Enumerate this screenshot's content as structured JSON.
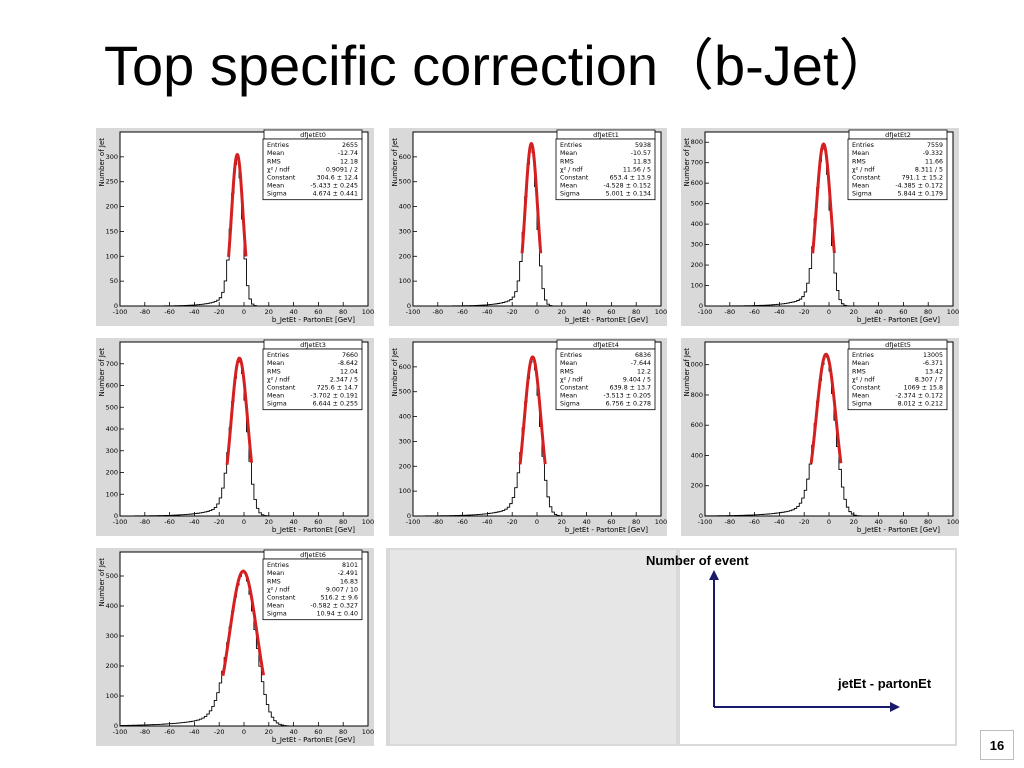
{
  "slide": {
    "title": "Top specific correction（b-Jet）",
    "page_number": "16"
  },
  "annotation": {
    "y_label": "Number of event",
    "x_label": "jetEt - partonEt"
  },
  "colors": {
    "fit": "#d42020",
    "histogram": "#000000",
    "panel_background": "#d9d9d9"
  },
  "chart_data": [
    {
      "type": "histogram",
      "title": "dfJetEt0",
      "xlabel": "b_JetEt - PartonEt [GeV]",
      "ylabel": "Number of Jet",
      "xlim": [
        -100,
        100
      ],
      "xticks": [
        -100,
        -80,
        -60,
        -40,
        -20,
        0,
        20,
        40,
        60,
        80,
        100
      ],
      "ylim": [
        0,
        350
      ],
      "yticks": [
        0,
        50,
        100,
        150,
        200,
        250,
        300
      ],
      "ytick_labels": [
        "0",
        "50",
        "100",
        "150",
        "200",
        "250",
        "300"
      ],
      "peak": 304.6,
      "fit_mean": -5.433,
      "fit_sigma": 4.674,
      "stats": [
        [
          "Entries",
          "2655"
        ],
        [
          "Mean",
          "-12.74"
        ],
        [
          "RMS",
          "12.18"
        ],
        [
          "χ² / ndf",
          "0.9091 / 2"
        ],
        [
          "Constant",
          "304.6 ± 12.4"
        ],
        [
          "Mean",
          "-5.433 ± 0.245"
        ],
        [
          "Sigma",
          "4.674 ± 0.441"
        ]
      ]
    },
    {
      "type": "histogram",
      "title": "dfJetEt1",
      "xlabel": "b_JetEt - PartonEt [GeV]",
      "ylabel": "Number of Jet",
      "xlim": [
        -100,
        100
      ],
      "xticks": [
        -100,
        -80,
        -60,
        -40,
        -20,
        0,
        20,
        40,
        60,
        80,
        100
      ],
      "ylim": [
        0,
        700
      ],
      "yticks": [
        0,
        100,
        200,
        300,
        400,
        500,
        600
      ],
      "ytick_labels": [
        "0",
        "100",
        "200",
        "300",
        "400",
        "500",
        "600"
      ],
      "peak": 653.4,
      "fit_mean": -4.528,
      "fit_sigma": 5.001,
      "stats": [
        [
          "Entries",
          "5938"
        ],
        [
          "Mean",
          "-10.57"
        ],
        [
          "RMS",
          "11.83"
        ],
        [
          "χ² / ndf",
          "11.56 / 5"
        ],
        [
          "Constant",
          "653.4 ± 13.9"
        ],
        [
          "Mean",
          "-4.528 ± 0.152"
        ],
        [
          "Sigma",
          "5.001 ± 0.134"
        ]
      ]
    },
    {
      "type": "histogram",
      "title": "dfJetEt2",
      "xlabel": "b_JetEt - PartonEt [GeV]",
      "ylabel": "Number of Jet",
      "xlim": [
        -100,
        100
      ],
      "xticks": [
        -100,
        -80,
        -60,
        -40,
        -20,
        0,
        20,
        40,
        60,
        80,
        100
      ],
      "ylim": [
        0,
        850
      ],
      "yticks": [
        0,
        100,
        200,
        300,
        400,
        500,
        600,
        700,
        800
      ],
      "ytick_labels": [
        "0",
        "100",
        "200",
        "300",
        "400",
        "500",
        "600",
        "700",
        "800"
      ],
      "peak": 791.1,
      "fit_mean": -4.385,
      "fit_sigma": 5.844,
      "stats": [
        [
          "Entries",
          "7559"
        ],
        [
          "Mean",
          "-9.332"
        ],
        [
          "RMS",
          "11.66"
        ],
        [
          "χ² / ndf",
          "8.311 / 5"
        ],
        [
          "Constant",
          "791.1 ± 15.2"
        ],
        [
          "Mean",
          "-4.385 ± 0.172"
        ],
        [
          "Sigma",
          "5.844 ± 0.179"
        ]
      ]
    },
    {
      "type": "histogram",
      "title": "dfJetEt3",
      "xlabel": "b_JetEt - PartonEt [GeV]",
      "ylabel": "Number of Jet",
      "xlim": [
        -100,
        100
      ],
      "xticks": [
        -100,
        -80,
        -60,
        -40,
        -20,
        0,
        20,
        40,
        60,
        80,
        100
      ],
      "ylim": [
        0,
        800
      ],
      "yticks": [
        0,
        100,
        200,
        300,
        400,
        500,
        600,
        700
      ],
      "ytick_labels": [
        "0",
        "100",
        "200",
        "300",
        "400",
        "500",
        "600",
        "700"
      ],
      "peak": 725.6,
      "fit_mean": -3.702,
      "fit_sigma": 6.644,
      "stats": [
        [
          "Entries",
          "7660"
        ],
        [
          "Mean",
          "-8.642"
        ],
        [
          "RMS",
          "12.04"
        ],
        [
          "χ² / ndf",
          "2.347 / 5"
        ],
        [
          "Constant",
          "725.6 ± 14.7"
        ],
        [
          "Mean",
          "-3.702 ± 0.191"
        ],
        [
          "Sigma",
          "6.644 ± 0.255"
        ]
      ]
    },
    {
      "type": "histogram",
      "title": "dfJetEt4",
      "xlabel": "b_JetEt - PartonEt [GeV]",
      "ylabel": "Number of Jet",
      "xlim": [
        -100,
        100
      ],
      "xticks": [
        -100,
        -80,
        -60,
        -40,
        -20,
        0,
        20,
        40,
        60,
        80,
        100
      ],
      "ylim": [
        0,
        700
      ],
      "yticks": [
        0,
        100,
        200,
        300,
        400,
        500,
        600
      ],
      "ytick_labels": [
        "0",
        "100",
        "200",
        "300",
        "400",
        "500",
        "600"
      ],
      "peak": 639.8,
      "fit_mean": -3.513,
      "fit_sigma": 6.756,
      "stats": [
        [
          "Entries",
          "6836"
        ],
        [
          "Mean",
          "-7.644"
        ],
        [
          "RMS",
          "12.2"
        ],
        [
          "χ² / ndf",
          "9.404 / 5"
        ],
        [
          "Constant",
          "639.8 ± 13.7"
        ],
        [
          "Mean",
          "-3.513 ± 0.205"
        ],
        [
          "Sigma",
          "6.756 ± 0.278"
        ]
      ]
    },
    {
      "type": "histogram",
      "title": "dfJetEt5",
      "xlabel": "b_JetEt - PartonEt [GeV]",
      "ylabel": "Number of Jet",
      "xlim": [
        -100,
        100
      ],
      "xticks": [
        -100,
        -80,
        -60,
        -40,
        -20,
        0,
        20,
        40,
        60,
        80,
        100
      ],
      "ylim": [
        0,
        1150
      ],
      "yticks": [
        0,
        200,
        400,
        600,
        800,
        1000
      ],
      "ytick_labels": [
        "0",
        "200",
        "400",
        "600",
        "800",
        "1000"
      ],
      "peak": 1069,
      "fit_mean": -2.374,
      "fit_sigma": 8.012,
      "stats": [
        [
          "Entries",
          "13005"
        ],
        [
          "Mean",
          "-6.371"
        ],
        [
          "RMS",
          "13.42"
        ],
        [
          "χ² / ndf",
          "8.307 / 7"
        ],
        [
          "Constant",
          "1069 ± 15.8"
        ],
        [
          "Mean",
          "-2.374 ± 0.172"
        ],
        [
          "Sigma",
          "8.012 ± 0.212"
        ]
      ]
    },
    {
      "type": "histogram",
      "title": "dfJetEt6",
      "xlabel": "b_JetEt - PartonEt [GeV]",
      "ylabel": "Number of Jet",
      "xlim": [
        -100,
        100
      ],
      "xticks": [
        -100,
        -80,
        -60,
        -40,
        -20,
        0,
        20,
        40,
        60,
        80,
        100
      ],
      "ylim": [
        0,
        580
      ],
      "yticks": [
        0,
        100,
        200,
        300,
        400,
        500
      ],
      "ytick_labels": [
        "0",
        "100",
        "200",
        "300",
        "400",
        "500"
      ],
      "peak": 516.2,
      "fit_mean": -0.582,
      "fit_sigma": 10.94,
      "stats": [
        [
          "Entries",
          "8101"
        ],
        [
          "Mean",
          "-2.491"
        ],
        [
          "RMS",
          "16.83"
        ],
        [
          "χ² / ndf",
          "9.007 / 10"
        ],
        [
          "Constant",
          "516.2 ± 9.6"
        ],
        [
          "Mean",
          "-0.582 ± 0.327"
        ],
        [
          "Sigma",
          "10.94 ± 0.40"
        ]
      ]
    }
  ]
}
